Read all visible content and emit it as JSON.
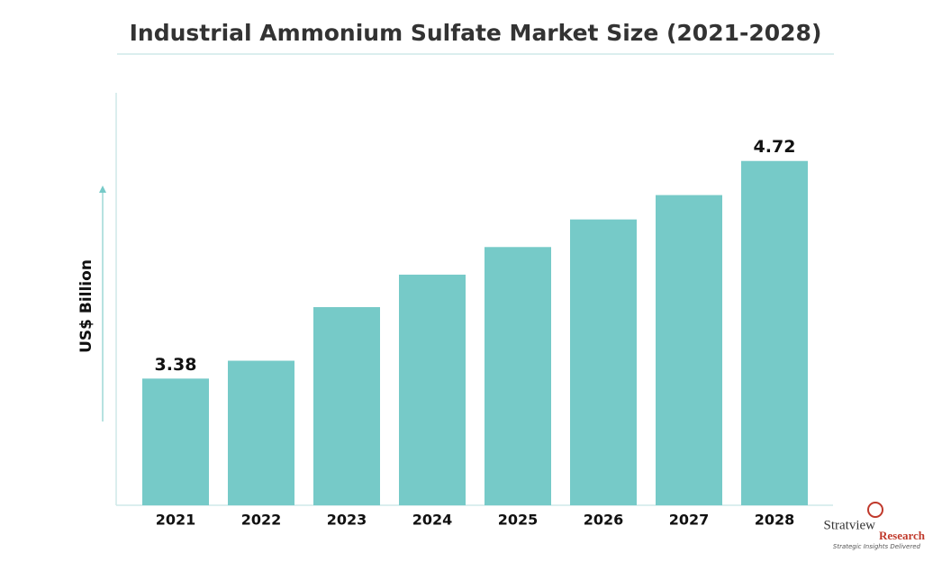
{
  "chart_data": {
    "type": "bar",
    "title": "Industrial Ammonium Sulfate Market Size (2021-2028)",
    "y_label": "US$ Billion",
    "categories": [
      "2021",
      "2022",
      "2023",
      "2024",
      "2025",
      "2026",
      "2027",
      "2028"
    ],
    "values": [
      3.38,
      3.49,
      3.82,
      4.02,
      4.19,
      4.36,
      4.51,
      4.72
    ],
    "value_labels": [
      "3.38",
      null,
      null,
      null,
      null,
      null,
      null,
      "4.72"
    ],
    "color": "#76cac8",
    "ylim": [
      2.6,
      5.14
    ]
  },
  "logo": {
    "name": "Stratview",
    "sub": "Research",
    "tagline": "Strategic Insights Delivered"
  }
}
